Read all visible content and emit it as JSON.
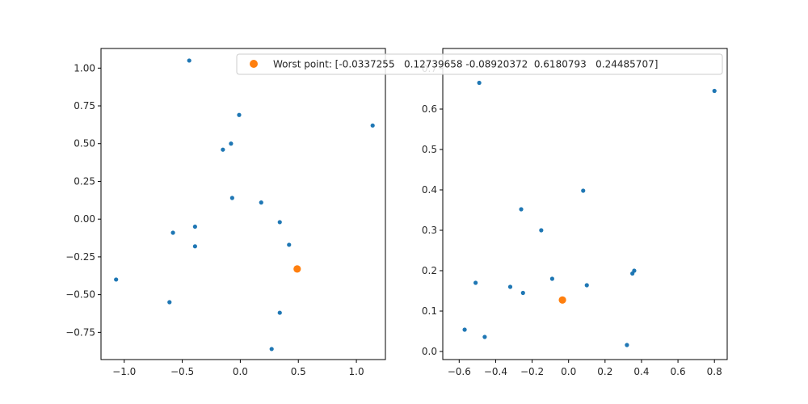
{
  "colors": {
    "points": "#1f77b4",
    "worst": "#ff7f0e",
    "background": "#ffffff"
  },
  "chart_data": [
    {
      "type": "scatter",
      "title": "",
      "xlabel": "",
      "ylabel": "",
      "xlim": [
        -1.2,
        1.25
      ],
      "ylim": [
        -0.93,
        1.13
      ],
      "xticks": [
        -1.0,
        -0.5,
        0.0,
        0.5,
        1.0
      ],
      "xtick_labels": [
        "−1.0",
        "−0.5",
        "0.0",
        "0.5",
        "1.0"
      ],
      "yticks": [
        -0.75,
        -0.5,
        -0.25,
        0.0,
        0.25,
        0.5,
        0.75,
        1.0
      ],
      "ytick_labels": [
        "−0.75",
        "−0.50",
        "−0.25",
        "0.00",
        "0.25",
        "0.50",
        "0.75",
        "1.00"
      ],
      "grid": false,
      "series": [
        {
          "name": "",
          "points": [
            [
              -0.44,
              1.05
            ],
            [
              -0.01,
              0.69
            ],
            [
              1.14,
              0.62
            ],
            [
              -0.08,
              0.5
            ],
            [
              -0.15,
              0.46
            ],
            [
              -0.07,
              0.14
            ],
            [
              0.18,
              0.11
            ],
            [
              -0.39,
              -0.05
            ],
            [
              0.34,
              -0.02
            ],
            [
              -0.58,
              -0.09
            ],
            [
              0.42,
              -0.17
            ],
            [
              -0.39,
              -0.18
            ],
            [
              -1.07,
              -0.4
            ],
            [
              -0.61,
              -0.55
            ],
            [
              0.34,
              -0.62
            ],
            [
              0.27,
              -0.86
            ]
          ]
        },
        {
          "name": "Worst point: [-0.0337255   0.12739658 -0.08920372  0.6180793   0.24485707]",
          "points": [
            [
              0.49,
              -0.33
            ]
          ]
        }
      ]
    },
    {
      "type": "scatter",
      "title": "",
      "xlabel": "",
      "ylabel": "",
      "xlim": [
        -0.69,
        0.87
      ],
      "ylim": [
        -0.02,
        0.75
      ],
      "xticks": [
        -0.6,
        -0.4,
        -0.2,
        0.0,
        0.2,
        0.4,
        0.6,
        0.8
      ],
      "xtick_labels": [
        "−0.6",
        "−0.4",
        "−0.2",
        "0.0",
        "0.2",
        "0.4",
        "0.6",
        "0.8"
      ],
      "yticks": [
        0.0,
        0.1,
        0.2,
        0.3,
        0.4,
        0.5,
        0.6,
        0.7
      ],
      "ytick_labels": [
        "0.0",
        "0.1",
        "0.2",
        "0.3",
        "0.4",
        "0.5",
        "0.6",
        "0.7"
      ],
      "grid": false,
      "series": [
        {
          "name": "",
          "points": [
            [
              -0.49,
              0.665
            ],
            [
              0.8,
              0.645
            ],
            [
              0.08,
              0.398
            ],
            [
              -0.26,
              0.352
            ],
            [
              -0.15,
              0.3
            ],
            [
              0.36,
              0.2
            ],
            [
              0.35,
              0.193
            ],
            [
              -0.09,
              0.18
            ],
            [
              -0.51,
              0.17
            ],
            [
              0.1,
              0.164
            ],
            [
              -0.32,
              0.16
            ],
            [
              -0.25,
              0.145
            ],
            [
              -0.57,
              0.054
            ],
            [
              -0.46,
              0.036
            ],
            [
              0.32,
              0.016
            ]
          ]
        },
        {
          "name": "Worst point: [-0.0337255   0.12739658 -0.08920372  0.6180793   0.24485707]",
          "points": [
            [
              -0.0337,
              0.1274
            ]
          ]
        }
      ]
    }
  ],
  "legend": {
    "label": "Worst point: [-0.0337255   0.12739658 -0.08920372  0.6180793   0.24485707]",
    "position": "top, spanning both plots"
  }
}
